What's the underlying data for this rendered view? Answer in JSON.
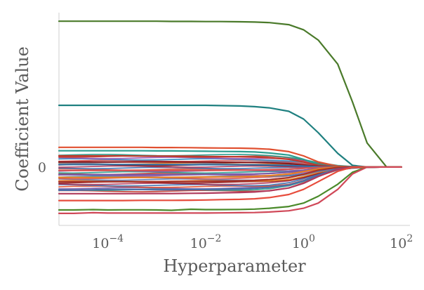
{
  "chart_data": {
    "type": "line",
    "title": "",
    "xlabel": "Hyperparameter",
    "ylabel": "Coefficient Value",
    "xscale": "log",
    "xlim": [
      1e-05,
      150
    ],
    "ylim": [
      -0.34,
      0.9
    ],
    "grid": false,
    "legend": "none",
    "x_ticks": [
      {
        "value": 0.0001,
        "base": "10",
        "exp": "−4"
      },
      {
        "value": 0.01,
        "base": "10",
        "exp": "−2"
      },
      {
        "value": 1,
        "base": "10",
        "exp": "0"
      },
      {
        "value": 100,
        "base": "10",
        "exp": "2"
      }
    ],
    "y_ticks": [
      {
        "value": 0,
        "label": "0"
      }
    ],
    "x": [
      1e-05,
      2e-05,
      5e-05,
      0.0001,
      0.0002,
      0.0005,
      0.001,
      0.002,
      0.005,
      0.01,
      0.02,
      0.05,
      0.1,
      0.2,
      0.5,
      1,
      2,
      5,
      10,
      20,
      50,
      100
    ],
    "series": [
      {
        "color": "#4a7a2a",
        "values": [
          0.85,
          0.85,
          0.85,
          0.85,
          0.85,
          0.85,
          0.85,
          0.849,
          0.849,
          0.848,
          0.848,
          0.847,
          0.845,
          0.842,
          0.83,
          0.8,
          0.74,
          0.6,
          0.38,
          0.14,
          0,
          0
        ]
      },
      {
        "color": "#1f8080",
        "values": [
          0.36,
          0.36,
          0.36,
          0.36,
          0.36,
          0.36,
          0.36,
          0.36,
          0.36,
          0.36,
          0.358,
          0.356,
          0.352,
          0.345,
          0.325,
          0.28,
          0.2,
          0.08,
          0.01,
          0,
          0,
          0
        ]
      },
      {
        "color": "#e05030",
        "values": [
          0.115,
          0.115,
          0.115,
          0.115,
          0.115,
          0.115,
          0.114,
          0.114,
          0.113,
          0.112,
          0.111,
          0.11,
          0.108,
          0.104,
          0.09,
          0.065,
          0.03,
          0.005,
          0,
          0,
          0,
          0
        ]
      },
      {
        "color": "#2a9d8f",
        "values": [
          0.095,
          0.095,
          0.095,
          0.095,
          0.095,
          0.095,
          0.094,
          0.094,
          0.093,
          0.092,
          0.091,
          0.09,
          0.088,
          0.082,
          0.07,
          0.045,
          0.015,
          0,
          0,
          0,
          0,
          0
        ]
      },
      {
        "color": "#c0392b",
        "values": [
          0.065,
          0.065,
          0.065,
          0.065,
          0.065,
          0.064,
          0.064,
          0.064,
          0.063,
          0.062,
          0.061,
          0.06,
          0.058,
          0.054,
          0.045,
          0.03,
          0.01,
          0,
          0,
          0,
          0,
          0
        ]
      },
      {
        "color": "#8b1a1a",
        "values": [
          0.03,
          0.03,
          0.03,
          0.03,
          0.03,
          0.03,
          0.03,
          0.03,
          0.029,
          0.029,
          0.028,
          0.028,
          0.027,
          0.025,
          0.02,
          0.012,
          0.004,
          0,
          0,
          0,
          0,
          0
        ]
      },
      {
        "color": "#2e6fa8",
        "values": [
          0.015,
          0.015,
          0.015,
          0.015,
          0.015,
          0.015,
          0.015,
          0.015,
          0.014,
          0.014,
          0.014,
          0.013,
          0.013,
          0.012,
          0.01,
          0.006,
          0.002,
          0,
          0,
          0,
          0,
          0
        ]
      },
      {
        "color": "#d35454",
        "values": [
          -0.02,
          -0.02,
          -0.02,
          -0.02,
          -0.02,
          -0.02,
          -0.02,
          -0.02,
          -0.019,
          -0.019,
          -0.019,
          -0.018,
          -0.017,
          -0.015,
          -0.012,
          -0.007,
          -0.002,
          0,
          0,
          0,
          0,
          0
        ]
      },
      {
        "color": "#7b5aa6",
        "values": [
          -0.045,
          -0.045,
          -0.045,
          -0.045,
          -0.045,
          -0.045,
          -0.045,
          -0.044,
          -0.044,
          -0.043,
          -0.042,
          -0.041,
          -0.04,
          -0.037,
          -0.03,
          -0.02,
          -0.008,
          0,
          0,
          0,
          0,
          0
        ]
      },
      {
        "color": "#e67e22",
        "values": [
          -0.06,
          -0.06,
          -0.06,
          -0.06,
          -0.06,
          -0.06,
          -0.06,
          -0.06,
          -0.059,
          -0.058,
          -0.057,
          -0.056,
          -0.054,
          -0.05,
          -0.041,
          -0.026,
          -0.01,
          0,
          0,
          0,
          0,
          0
        ]
      },
      {
        "color": "#a93226",
        "values": [
          -0.085,
          -0.085,
          -0.085,
          -0.085,
          -0.085,
          -0.085,
          -0.085,
          -0.084,
          -0.084,
          -0.083,
          -0.082,
          -0.08,
          -0.078,
          -0.073,
          -0.062,
          -0.042,
          -0.018,
          -0.002,
          0,
          0,
          0,
          0
        ]
      },
      {
        "color": "#4b6ea8",
        "values": [
          -0.135,
          -0.135,
          -0.132,
          -0.13,
          -0.13,
          -0.131,
          -0.132,
          -0.132,
          -0.131,
          -0.13,
          -0.129,
          -0.127,
          -0.124,
          -0.118,
          -0.105,
          -0.08,
          -0.045,
          -0.01,
          0,
          0,
          0,
          0
        ]
      },
      {
        "color": "#b03a5b",
        "values": [
          -0.155,
          -0.155,
          -0.155,
          -0.155,
          -0.155,
          -0.154,
          -0.154,
          -0.154,
          -0.153,
          -0.152,
          -0.15,
          -0.148,
          -0.145,
          -0.138,
          -0.122,
          -0.095,
          -0.055,
          -0.012,
          0,
          0,
          0,
          0
        ]
      },
      {
        "color": "#e74c3c",
        "values": [
          -0.195,
          -0.195,
          -0.195,
          -0.195,
          -0.195,
          -0.194,
          -0.194,
          -0.194,
          -0.193,
          -0.192,
          -0.19,
          -0.188,
          -0.185,
          -0.178,
          -0.16,
          -0.13,
          -0.085,
          -0.025,
          0,
          0,
          0,
          0
        ]
      },
      {
        "color": "#4a8a2a",
        "values": [
          -0.25,
          -0.25,
          -0.248,
          -0.25,
          -0.249,
          -0.249,
          -0.25,
          -0.252,
          -0.246,
          -0.248,
          -0.248,
          -0.247,
          -0.245,
          -0.24,
          -0.23,
          -0.21,
          -0.17,
          -0.1,
          -0.03,
          0,
          0,
          0
        ]
      },
      {
        "color": "#d04858",
        "values": [
          -0.27,
          -0.27,
          -0.266,
          -0.268,
          -0.268,
          -0.268,
          -0.268,
          -0.268,
          -0.268,
          -0.268,
          -0.267,
          -0.266,
          -0.265,
          -0.262,
          -0.255,
          -0.24,
          -0.21,
          -0.13,
          -0.04,
          0,
          0,
          0
        ]
      }
    ],
    "bundle": {
      "note": "",
      "count": 26,
      "range": [
        -0.14,
        0.07
      ],
      "colors": [
        "#c0392b",
        "#2a9d8f",
        "#7b5aa6",
        "#e05030",
        "#3b6fb0",
        "#b03a5b",
        "#8b1a1a",
        "#e67e22",
        "#5a7fb5",
        "#d35454",
        "#2e86c1",
        "#9b59b6"
      ]
    }
  }
}
